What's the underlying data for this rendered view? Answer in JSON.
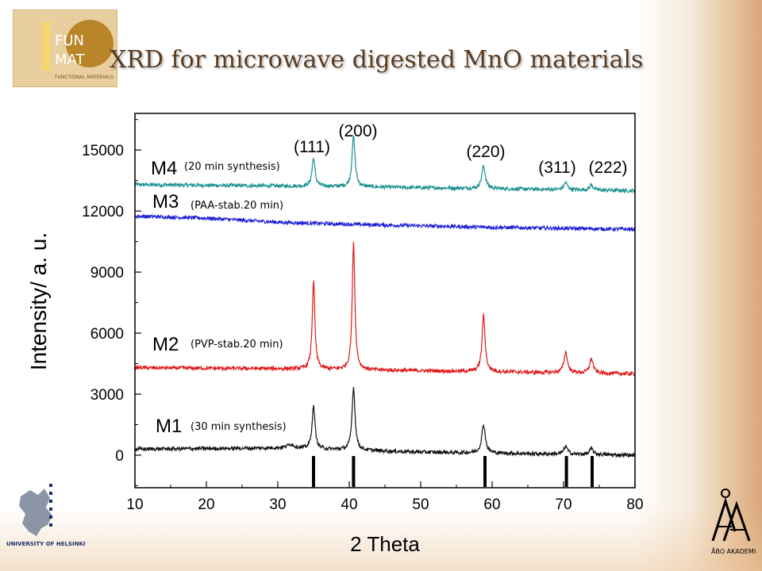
{
  "header": {
    "title": "XRD for microwave digested MnO materials",
    "logo_lines": [
      "FUN",
      "MAT",
      "FUNCTIONAL MATERIALS"
    ]
  },
  "chart_data": {
    "type": "line",
    "title": "",
    "xlabel": "2 Theta",
    "ylabel": "Intensity/ a. u.",
    "xlim": [
      10,
      80
    ],
    "ylim": [
      -1600,
      16800
    ],
    "x_ticks": [
      10,
      20,
      30,
      40,
      50,
      60,
      70,
      80
    ],
    "y_ticks": [
      0,
      3000,
      6000,
      9000,
      12000,
      15000
    ],
    "grid": false,
    "peak_labels": [
      {
        "text": "(111)",
        "x": 35.0
      },
      {
        "text": "(200)",
        "x": 40.6
      },
      {
        "text": "(220)",
        "x": 58.8
      },
      {
        "text": "(311)",
        "x": 70.3
      },
      {
        "text": "(222)",
        "x": 73.9
      }
    ],
    "reference_peaks": [
      {
        "x": 35.0,
        "y_top": -40,
        "y_bottom": -1900
      },
      {
        "x": 40.6,
        "y_top": -40,
        "y_bottom": -1900
      },
      {
        "x": 59.0,
        "y_top": -40,
        "y_bottom": -1900
      },
      {
        "x": 70.4,
        "y_top": -40,
        "y_bottom": -1900
      },
      {
        "x": 74.0,
        "y_top": -40,
        "y_bottom": -1900
      }
    ],
    "series": [
      {
        "name": "M4",
        "note": "(20 min synthesis)",
        "color": "#1a9090",
        "baseline": [
          [
            10,
            13300
          ],
          [
            40,
            13200
          ],
          [
            80,
            13000
          ]
        ],
        "peaks": [
          [
            35.0,
            1400,
            0.25
          ],
          [
            40.6,
            2500,
            0.25
          ],
          [
            58.8,
            1100,
            0.3
          ],
          [
            70.3,
            350,
            0.3
          ],
          [
            73.9,
            250,
            0.3
          ]
        ]
      },
      {
        "name": "M3",
        "note": "(PAA-stab.20 min)",
        "color": "#1f1fd6",
        "baseline": [
          [
            10,
            11750
          ],
          [
            20,
            11650
          ],
          [
            30,
            11450
          ],
          [
            40,
            11350
          ],
          [
            60,
            11200
          ],
          [
            80,
            11100
          ]
        ],
        "peaks": []
      },
      {
        "name": "M2",
        "note": "(PVP-stab.20 min)",
        "color": "#e01818",
        "baseline": [
          [
            10,
            4300
          ],
          [
            30,
            4250
          ],
          [
            50,
            4150
          ],
          [
            80,
            4000
          ]
        ],
        "peaks": [
          [
            35.0,
            4300,
            0.22
          ],
          [
            40.6,
            6300,
            0.22
          ],
          [
            58.8,
            2800,
            0.25
          ],
          [
            70.3,
            1000,
            0.3
          ],
          [
            73.9,
            700,
            0.3
          ]
        ]
      },
      {
        "name": "M1",
        "note": "(30 min synthesis)",
        "color": "#111111",
        "baseline": [
          [
            10,
            300
          ],
          [
            30,
            350
          ],
          [
            50,
            150
          ],
          [
            80,
            0
          ]
        ],
        "peaks": [
          [
            31.8,
            200,
            0.6
          ],
          [
            35.0,
            2100,
            0.25
          ],
          [
            40.6,
            3100,
            0.25
          ],
          [
            58.8,
            1400,
            0.3
          ],
          [
            70.3,
            400,
            0.3
          ],
          [
            73.9,
            300,
            0.3
          ]
        ]
      }
    ]
  },
  "footer": {
    "left_logo_text": "UNIVERSITY OF HELSINKI",
    "right_logo_text": "ÅBO AKADEMI"
  }
}
